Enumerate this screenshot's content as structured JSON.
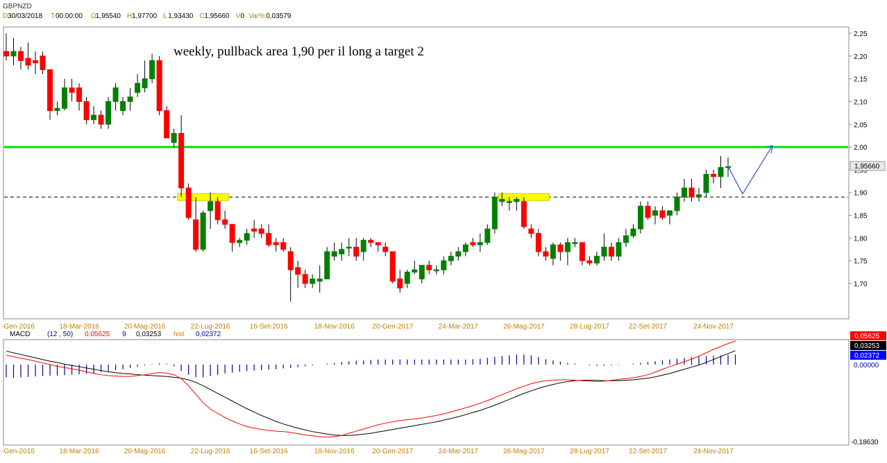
{
  "header": {
    "symbol": "GBPNZD",
    "info": [
      {
        "key": "D",
        "value": "30/03/2018"
      },
      {
        "key": "T",
        "value": "00:00:00"
      },
      {
        "key": "O",
        "value": "1,95540"
      },
      {
        "key": "H",
        "value": "1,97700"
      },
      {
        "key": "L",
        "value": "1,93430"
      },
      {
        "key": "C",
        "value": "1,95660"
      },
      {
        "key": "V",
        "value": "0"
      },
      {
        "key": "Var%",
        "value": "0,03579"
      }
    ]
  },
  "annotation": {
    "text": "weekly, pullback area 1,90 per il long a target 2"
  },
  "price_panel": {
    "last_price_label": "1,95660",
    "y_ticks": [
      "2,25",
      "2,20",
      "2,15",
      "2,10",
      "2,05",
      "2,00",
      "1,95",
      "1,90",
      "1,85",
      "1,80",
      "1,75",
      "1,70"
    ]
  },
  "x_ticks": [
    "-Gen-2016",
    "18-Mar-2016",
    "20-Mag-2016",
    "22-Lug-2016",
    "16-Set-2016",
    "18-Nov-2016",
    "20-Gen-2017",
    "24-Mar-2017",
    "26-Mag-2017",
    "28-Lug-2017",
    "22-Set-2017",
    "24-Nov-2017"
  ],
  "macd_panel": {
    "label": "MACD",
    "params": "(12 , 50)",
    "macd_value": "0,05625",
    "signal_period": "9",
    "signal_value": "0,03253",
    "hist_label": "hist",
    "hist_value": "0,02372",
    "zero_label": "0,00000",
    "min_label": "-0,18630"
  },
  "colors": {
    "up": "#008000",
    "down": "#ff0000",
    "resistance": "#00e000",
    "highlight": "#ffff00",
    "arrow": "#4060c0",
    "macd_line": "#ff0000",
    "signal_line": "#000000",
    "hist": "#0000a0"
  },
  "chart_data": [
    {
      "type": "candlestick",
      "title": "GBPNZD",
      "timeframe": "weekly",
      "ylim": [
        1.65,
        2.27
      ],
      "levels": [
        {
          "name": "target",
          "value": 2.0
        },
        {
          "name": "pullback",
          "value": 1.89
        }
      ],
      "candles": [
        {
          "o": 2.21,
          "h": 2.25,
          "l": 2.19,
          "c": 2.2
        },
        {
          "o": 2.2,
          "h": 2.24,
          "l": 2.18,
          "c": 2.21
        },
        {
          "o": 2.21,
          "h": 2.22,
          "l": 2.17,
          "c": 2.19
        },
        {
          "o": 2.195,
          "h": 2.23,
          "l": 2.17,
          "c": 2.18
        },
        {
          "o": 2.19,
          "h": 2.21,
          "l": 2.16,
          "c": 2.185
        },
        {
          "o": 2.2,
          "h": 2.21,
          "l": 2.16,
          "c": 2.17
        },
        {
          "o": 2.17,
          "h": 2.17,
          "l": 2.06,
          "c": 2.08
        },
        {
          "o": 2.08,
          "h": 2.1,
          "l": 2.07,
          "c": 2.085
        },
        {
          "o": 2.085,
          "h": 2.15,
          "l": 2.08,
          "c": 2.13
        },
        {
          "o": 2.13,
          "h": 2.15,
          "l": 2.1,
          "c": 2.12
        },
        {
          "o": 2.13,
          "h": 2.14,
          "l": 2.08,
          "c": 2.1
        },
        {
          "o": 2.1,
          "h": 2.11,
          "l": 2.05,
          "c": 2.06
        },
        {
          "o": 2.06,
          "h": 2.09,
          "l": 2.05,
          "c": 2.07
        },
        {
          "o": 2.07,
          "h": 2.08,
          "l": 2.04,
          "c": 2.05
        },
        {
          "o": 2.05,
          "h": 2.11,
          "l": 2.04,
          "c": 2.1
        },
        {
          "o": 2.1,
          "h": 2.14,
          "l": 2.08,
          "c": 2.13
        },
        {
          "o": 2.08,
          "h": 2.11,
          "l": 2.07,
          "c": 2.1
        },
        {
          "o": 2.1,
          "h": 2.13,
          "l": 2.08,
          "c": 2.11
        },
        {
          "o": 2.12,
          "h": 2.16,
          "l": 2.11,
          "c": 2.14
        },
        {
          "o": 2.13,
          "h": 2.19,
          "l": 2.12,
          "c": 2.15
        },
        {
          "o": 2.15,
          "h": 2.205,
          "l": 2.14,
          "c": 2.19
        },
        {
          "o": 2.19,
          "h": 2.2,
          "l": 2.07,
          "c": 2.08
        },
        {
          "o": 2.08,
          "h": 2.09,
          "l": 2.02,
          "c": 2.02
        },
        {
          "o": 2.01,
          "h": 2.04,
          "l": 2.0,
          "c": 2.03
        },
        {
          "o": 2.03,
          "h": 2.07,
          "l": 1.89,
          "c": 1.91
        },
        {
          "o": 1.91,
          "h": 1.92,
          "l": 1.84,
          "c": 1.845
        },
        {
          "o": 1.84,
          "h": 1.89,
          "l": 1.77,
          "c": 1.775
        },
        {
          "o": 1.775,
          "h": 1.86,
          "l": 1.77,
          "c": 1.855
        },
        {
          "o": 1.86,
          "h": 1.9,
          "l": 1.82,
          "c": 1.88
        },
        {
          "o": 1.88,
          "h": 1.89,
          "l": 1.83,
          "c": 1.84
        },
        {
          "o": 1.84,
          "h": 1.86,
          "l": 1.82,
          "c": 1.83
        },
        {
          "o": 1.83,
          "h": 1.83,
          "l": 1.77,
          "c": 1.79
        },
        {
          "o": 1.79,
          "h": 1.8,
          "l": 1.78,
          "c": 1.795
        },
        {
          "o": 1.795,
          "h": 1.82,
          "l": 1.785,
          "c": 1.81
        },
        {
          "o": 1.82,
          "h": 1.84,
          "l": 1.8,
          "c": 1.815
        },
        {
          "o": 1.82,
          "h": 1.83,
          "l": 1.8,
          "c": 1.81
        },
        {
          "o": 1.81,
          "h": 1.83,
          "l": 1.78,
          "c": 1.785
        },
        {
          "o": 1.79,
          "h": 1.8,
          "l": 1.77,
          "c": 1.785
        },
        {
          "o": 1.79,
          "h": 1.8,
          "l": 1.77,
          "c": 1.775
        },
        {
          "o": 1.77,
          "h": 1.78,
          "l": 1.66,
          "c": 1.73
        },
        {
          "o": 1.735,
          "h": 1.75,
          "l": 1.69,
          "c": 1.72
        },
        {
          "o": 1.72,
          "h": 1.73,
          "l": 1.69,
          "c": 1.7
        },
        {
          "o": 1.7,
          "h": 1.72,
          "l": 1.69,
          "c": 1.71
        },
        {
          "o": 1.705,
          "h": 1.74,
          "l": 1.68,
          "c": 1.71
        },
        {
          "o": 1.71,
          "h": 1.78,
          "l": 1.71,
          "c": 1.77
        },
        {
          "o": 1.76,
          "h": 1.79,
          "l": 1.75,
          "c": 1.77
        },
        {
          "o": 1.765,
          "h": 1.79,
          "l": 1.75,
          "c": 1.775
        },
        {
          "o": 1.78,
          "h": 1.8,
          "l": 1.76,
          "c": 1.78
        },
        {
          "o": 1.78,
          "h": 1.8,
          "l": 1.75,
          "c": 1.76
        },
        {
          "o": 1.77,
          "h": 1.8,
          "l": 1.75,
          "c": 1.795
        },
        {
          "o": 1.795,
          "h": 1.8,
          "l": 1.78,
          "c": 1.79
        },
        {
          "o": 1.79,
          "h": 1.79,
          "l": 1.77,
          "c": 1.785
        },
        {
          "o": 1.78,
          "h": 1.79,
          "l": 1.76,
          "c": 1.77
        },
        {
          "o": 1.77,
          "h": 1.77,
          "l": 1.7,
          "c": 1.705
        },
        {
          "o": 1.71,
          "h": 1.73,
          "l": 1.68,
          "c": 1.69
        },
        {
          "o": 1.7,
          "h": 1.73,
          "l": 1.69,
          "c": 1.725
        },
        {
          "o": 1.725,
          "h": 1.75,
          "l": 1.72,
          "c": 1.73
        },
        {
          "o": 1.71,
          "h": 1.74,
          "l": 1.7,
          "c": 1.74
        },
        {
          "o": 1.74,
          "h": 1.75,
          "l": 1.72,
          "c": 1.73
        },
        {
          "o": 1.73,
          "h": 1.74,
          "l": 1.72,
          "c": 1.73
        },
        {
          "o": 1.73,
          "h": 1.76,
          "l": 1.72,
          "c": 1.75
        },
        {
          "o": 1.75,
          "h": 1.77,
          "l": 1.74,
          "c": 1.76
        },
        {
          "o": 1.76,
          "h": 1.78,
          "l": 1.75,
          "c": 1.77
        },
        {
          "o": 1.77,
          "h": 1.79,
          "l": 1.76,
          "c": 1.785
        },
        {
          "o": 1.79,
          "h": 1.8,
          "l": 1.78,
          "c": 1.785
        },
        {
          "o": 1.785,
          "h": 1.81,
          "l": 1.77,
          "c": 1.79
        },
        {
          "o": 1.79,
          "h": 1.83,
          "l": 1.785,
          "c": 1.82
        },
        {
          "o": 1.82,
          "h": 1.9,
          "l": 1.81,
          "c": 1.89
        },
        {
          "o": 1.88,
          "h": 1.9,
          "l": 1.87,
          "c": 1.885
        },
        {
          "o": 1.88,
          "h": 1.89,
          "l": 1.86,
          "c": 1.88
        },
        {
          "o": 1.88,
          "h": 1.89,
          "l": 1.86,
          "c": 1.885
        },
        {
          "o": 1.88,
          "h": 1.89,
          "l": 1.82,
          "c": 1.825
        },
        {
          "o": 1.82,
          "h": 1.83,
          "l": 1.8,
          "c": 1.81
        },
        {
          "o": 1.81,
          "h": 1.82,
          "l": 1.76,
          "c": 1.77
        },
        {
          "o": 1.77,
          "h": 1.78,
          "l": 1.75,
          "c": 1.76
        },
        {
          "o": 1.755,
          "h": 1.79,
          "l": 1.74,
          "c": 1.785
        },
        {
          "o": 1.785,
          "h": 1.79,
          "l": 1.75,
          "c": 1.77
        },
        {
          "o": 1.77,
          "h": 1.8,
          "l": 1.74,
          "c": 1.79
        },
        {
          "o": 1.79,
          "h": 1.8,
          "l": 1.78,
          "c": 1.79
        },
        {
          "o": 1.79,
          "h": 1.79,
          "l": 1.74,
          "c": 1.75
        },
        {
          "o": 1.75,
          "h": 1.76,
          "l": 1.74,
          "c": 1.745
        },
        {
          "o": 1.745,
          "h": 1.77,
          "l": 1.74,
          "c": 1.76
        },
        {
          "o": 1.76,
          "h": 1.81,
          "l": 1.75,
          "c": 1.78
        },
        {
          "o": 1.78,
          "h": 1.79,
          "l": 1.75,
          "c": 1.76
        },
        {
          "o": 1.76,
          "h": 1.8,
          "l": 1.75,
          "c": 1.79
        },
        {
          "o": 1.79,
          "h": 1.82,
          "l": 1.78,
          "c": 1.805
        },
        {
          "o": 1.805,
          "h": 1.83,
          "l": 1.8,
          "c": 1.82
        },
        {
          "o": 1.82,
          "h": 1.88,
          "l": 1.81,
          "c": 1.87
        },
        {
          "o": 1.87,
          "h": 1.88,
          "l": 1.84,
          "c": 1.845
        },
        {
          "o": 1.85,
          "h": 1.87,
          "l": 1.83,
          "c": 1.86
        },
        {
          "o": 1.86,
          "h": 1.87,
          "l": 1.84,
          "c": 1.845
        },
        {
          "o": 1.85,
          "h": 1.86,
          "l": 1.83,
          "c": 1.86
        },
        {
          "o": 1.86,
          "h": 1.9,
          "l": 1.85,
          "c": 1.89
        },
        {
          "o": 1.89,
          "h": 1.93,
          "l": 1.88,
          "c": 1.91
        },
        {
          "o": 1.91,
          "h": 1.93,
          "l": 1.88,
          "c": 1.89
        },
        {
          "o": 1.89,
          "h": 1.91,
          "l": 1.88,
          "c": 1.895
        },
        {
          "o": 1.9,
          "h": 1.95,
          "l": 1.89,
          "c": 1.94
        },
        {
          "o": 1.94,
          "h": 1.95,
          "l": 1.92,
          "c": 1.935
        },
        {
          "o": 1.935,
          "h": 1.98,
          "l": 1.91,
          "c": 1.955
        },
        {
          "o": 1.955,
          "h": 1.977,
          "l": 1.934,
          "c": 1.957
        }
      ],
      "projection": [
        {
          "label": "pullback",
          "value": 1.9
        },
        {
          "label": "target",
          "value": 2.0
        }
      ]
    },
    {
      "type": "line",
      "title": "MACD",
      "ylim": [
        -0.19,
        0.06
      ],
      "series": [
        {
          "name": "MACD",
          "values": [
            0.022,
            0.019,
            0.015,
            0.012,
            0.008,
            0.004,
            0.0,
            -0.004,
            -0.007,
            -0.01,
            -0.013,
            -0.017,
            -0.021,
            -0.024,
            -0.026,
            -0.027,
            -0.028,
            -0.028,
            -0.026,
            -0.024,
            -0.021,
            -0.019,
            -0.02,
            -0.024,
            -0.033,
            -0.05,
            -0.07,
            -0.09,
            -0.105,
            -0.115,
            -0.125,
            -0.133,
            -0.14,
            -0.146,
            -0.15,
            -0.153,
            -0.155,
            -0.157,
            -0.158,
            -0.16,
            -0.163,
            -0.166,
            -0.168,
            -0.17,
            -0.171,
            -0.17,
            -0.167,
            -0.162,
            -0.157,
            -0.152,
            -0.147,
            -0.142,
            -0.138,
            -0.135,
            -0.132,
            -0.13,
            -0.128,
            -0.126,
            -0.123,
            -0.12,
            -0.116,
            -0.112,
            -0.107,
            -0.102,
            -0.097,
            -0.091,
            -0.085,
            -0.078,
            -0.071,
            -0.064,
            -0.057,
            -0.051,
            -0.045,
            -0.041,
            -0.038,
            -0.037,
            -0.036,
            -0.036,
            -0.037,
            -0.038,
            -0.039,
            -0.04,
            -0.039,
            -0.037,
            -0.035,
            -0.033,
            -0.031,
            -0.028,
            -0.024,
            -0.018,
            -0.011,
            -0.005,
            0.001,
            0.007,
            0.013,
            0.02,
            0.028,
            0.036,
            0.043,
            0.05,
            0.056
          ]
        },
        {
          "name": "Signal",
          "values": [
            0.032,
            0.028,
            0.024,
            0.02,
            0.016,
            0.012,
            0.008,
            0.005,
            0.001,
            -0.002,
            -0.005,
            -0.008,
            -0.011,
            -0.014,
            -0.017,
            -0.019,
            -0.021,
            -0.022,
            -0.024,
            -0.025,
            -0.026,
            -0.027,
            -0.028,
            -0.03,
            -0.032,
            -0.036,
            -0.042,
            -0.05,
            -0.059,
            -0.068,
            -0.077,
            -0.086,
            -0.095,
            -0.104,
            -0.112,
            -0.12,
            -0.127,
            -0.134,
            -0.14,
            -0.145,
            -0.15,
            -0.154,
            -0.158,
            -0.161,
            -0.164,
            -0.166,
            -0.167,
            -0.167,
            -0.166,
            -0.164,
            -0.162,
            -0.159,
            -0.156,
            -0.153,
            -0.15,
            -0.147,
            -0.144,
            -0.141,
            -0.138,
            -0.135,
            -0.131,
            -0.127,
            -0.123,
            -0.118,
            -0.113,
            -0.108,
            -0.102,
            -0.096,
            -0.089,
            -0.082,
            -0.075,
            -0.068,
            -0.062,
            -0.056,
            -0.051,
            -0.047,
            -0.043,
            -0.04,
            -0.038,
            -0.037,
            -0.037,
            -0.037,
            -0.038,
            -0.038,
            -0.038,
            -0.037,
            -0.036,
            -0.034,
            -0.032,
            -0.029,
            -0.025,
            -0.021,
            -0.016,
            -0.011,
            -0.006,
            -0.001,
            0.005,
            0.012,
            0.019,
            0.026,
            0.033
          ]
        },
        {
          "name": "hist",
          "type": "bar",
          "values": [
            -0.03,
            -0.031,
            -0.03,
            -0.029,
            -0.028,
            -0.027,
            -0.026,
            -0.026,
            -0.025,
            -0.024,
            -0.023,
            -0.022,
            -0.02,
            -0.018,
            -0.016,
            -0.013,
            -0.011,
            -0.008,
            -0.005,
            -0.002,
            0.001,
            0.003,
            0.002,
            -0.004,
            -0.015,
            -0.024,
            -0.03,
            -0.03,
            -0.027,
            -0.024,
            -0.021,
            -0.019,
            -0.017,
            -0.015,
            -0.014,
            -0.013,
            -0.012,
            -0.011,
            -0.009,
            -0.008,
            -0.006,
            -0.004,
            -0.002,
            0.0,
            0.002,
            0.004,
            0.006,
            0.008,
            0.009,
            0.01,
            0.011,
            0.012,
            0.012,
            0.012,
            0.012,
            0.012,
            0.012,
            0.012,
            0.012,
            0.012,
            0.012,
            0.012,
            0.012,
            0.012,
            0.013,
            0.014,
            0.016,
            0.018,
            0.02,
            0.022,
            0.024,
            0.024,
            0.022,
            0.018,
            0.013,
            0.01,
            0.007,
            0.004,
            0.002,
            0.0,
            -0.002,
            -0.003,
            -0.003,
            -0.002,
            -0.001,
            0.0,
            0.002,
            0.004,
            0.006,
            0.008,
            0.01,
            0.012,
            0.014,
            0.016,
            0.018,
            0.019,
            0.02,
            0.021,
            0.022,
            0.023,
            0.024
          ]
        }
      ]
    }
  ]
}
